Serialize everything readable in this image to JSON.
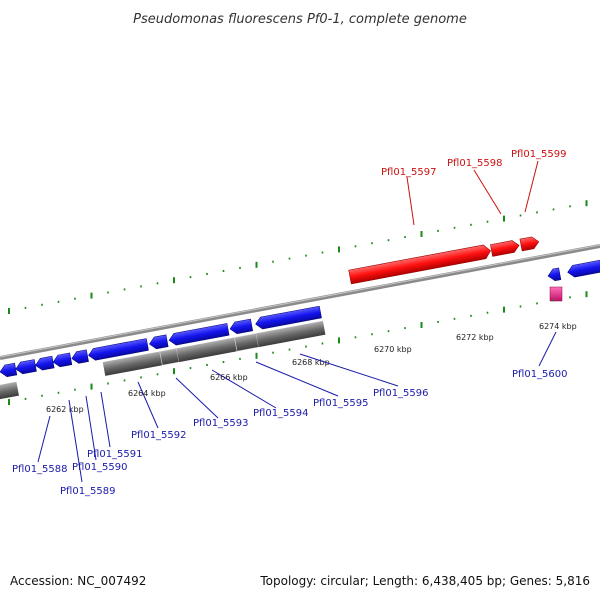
{
  "title": "Pseudomonas fluorescens Pf0-1, complete genome",
  "footer": {
    "accession": "Accession: NC_007492",
    "summary": "Topology: circular; Length: 6,438,405 bp; Genes: 5,816"
  },
  "colors": {
    "reverse_gene": "#1a1aff",
    "forward_gene": "#ff1a1a",
    "pink_feature": "#e8208a",
    "backbone": "#888888",
    "gray_track": "#6e6e6e",
    "tick_mark": "#1a8a1a",
    "label_blue": "#1a1aaa",
    "label_red": "#cc1111"
  },
  "tick_labels": [
    "6262 kbp",
    "6264 kbp",
    "6266 kbp",
    "6268 kbp",
    "6270 kbp",
    "6272 kbp",
    "6274 kbp"
  ],
  "gene_labels": {
    "g5588": "Pfl01_5588",
    "g5589": "Pfl01_5589",
    "g5590": "Pfl01_5590",
    "g5591": "Pfl01_5591",
    "g5592": "Pfl01_5592",
    "g5593": "Pfl01_5593",
    "g5594": "Pfl01_5594",
    "g5595": "Pfl01_5595",
    "g5596": "Pfl01_5596",
    "g5597": "Pfl01_5597",
    "g5598": "Pfl01_5598",
    "g5599": "Pfl01_5599",
    "g5600": "Pfl01_5600"
  }
}
